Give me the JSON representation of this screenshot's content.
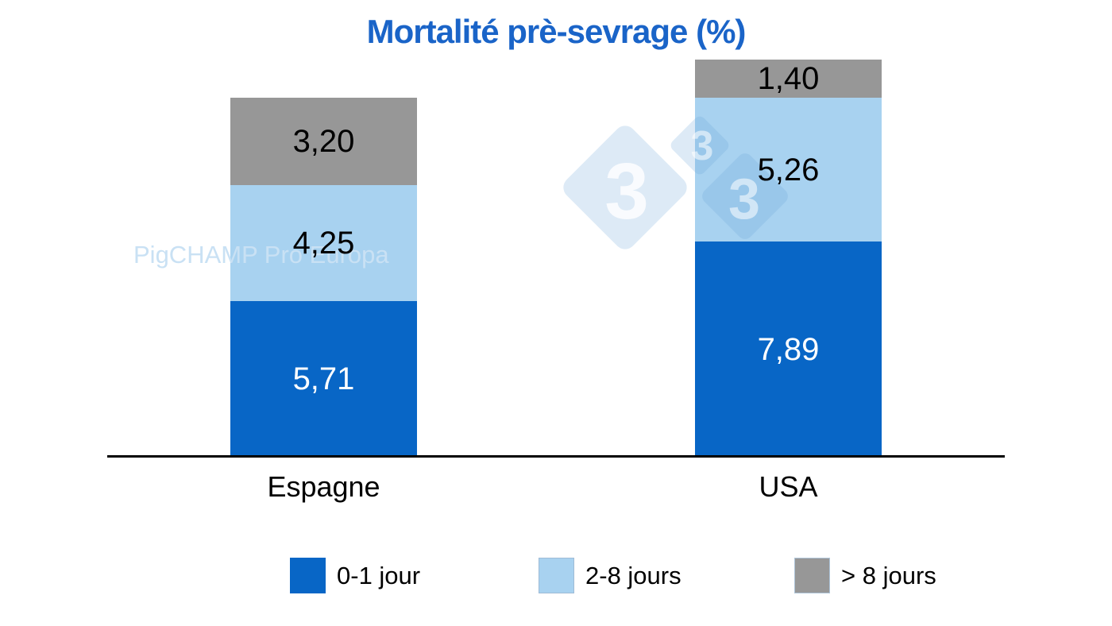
{
  "title": "Mortalité prè-sevrage (%)",
  "colors": {
    "title": "#1A64C8",
    "axis": "#000000",
    "watermark_text": "#C9E1F4",
    "series_blue": "#0866C6",
    "series_lightblue": "#A8D2F0",
    "series_gray": "#979797"
  },
  "watermark": {
    "text": "PigCHAMP Pro Europa",
    "logo_digits": [
      "3",
      "3",
      "3"
    ]
  },
  "legend": [
    {
      "label": "0-1 jour",
      "color": "#0866C6",
      "border": "none"
    },
    {
      "label": "2-8 jours",
      "color": "#A8D2F0",
      "border": "1px solid #9FBBD6"
    },
    {
      "label": "> 8 jours",
      "color": "#979797",
      "border": "1px solid #AEC4D8"
    }
  ],
  "chart_data": {
    "type": "bar",
    "stacked": true,
    "title": "Mortalité prè-sevrage (%)",
    "categories": [
      "Espagne",
      "USA"
    ],
    "series": [
      {
        "name": "0-1 jour",
        "color": "#0866C6",
        "label_color": "#FFFFFF",
        "values": [
          5.71,
          7.89
        ],
        "labels": [
          "5,71",
          "7,89"
        ]
      },
      {
        "name": "2-8 jours",
        "color": "#A8D2F0",
        "label_color": "#000000",
        "values": [
          4.25,
          5.26
        ],
        "labels": [
          "4,25",
          "5,26"
        ]
      },
      {
        "name": "> 8 jours",
        "color": "#979797",
        "label_color": "#000000",
        "values": [
          3.2,
          1.4
        ],
        "labels": [
          "3,20",
          "1,40"
        ]
      }
    ],
    "totals": [
      13.16,
      14.55
    ],
    "xlabel": "",
    "ylabel": "",
    "ylim": [
      0,
      16
    ],
    "grid": false,
    "y_axis_visible": false,
    "x_axis_line": true,
    "legend_position": "bottom",
    "value_label_format": "comma-decimal"
  }
}
